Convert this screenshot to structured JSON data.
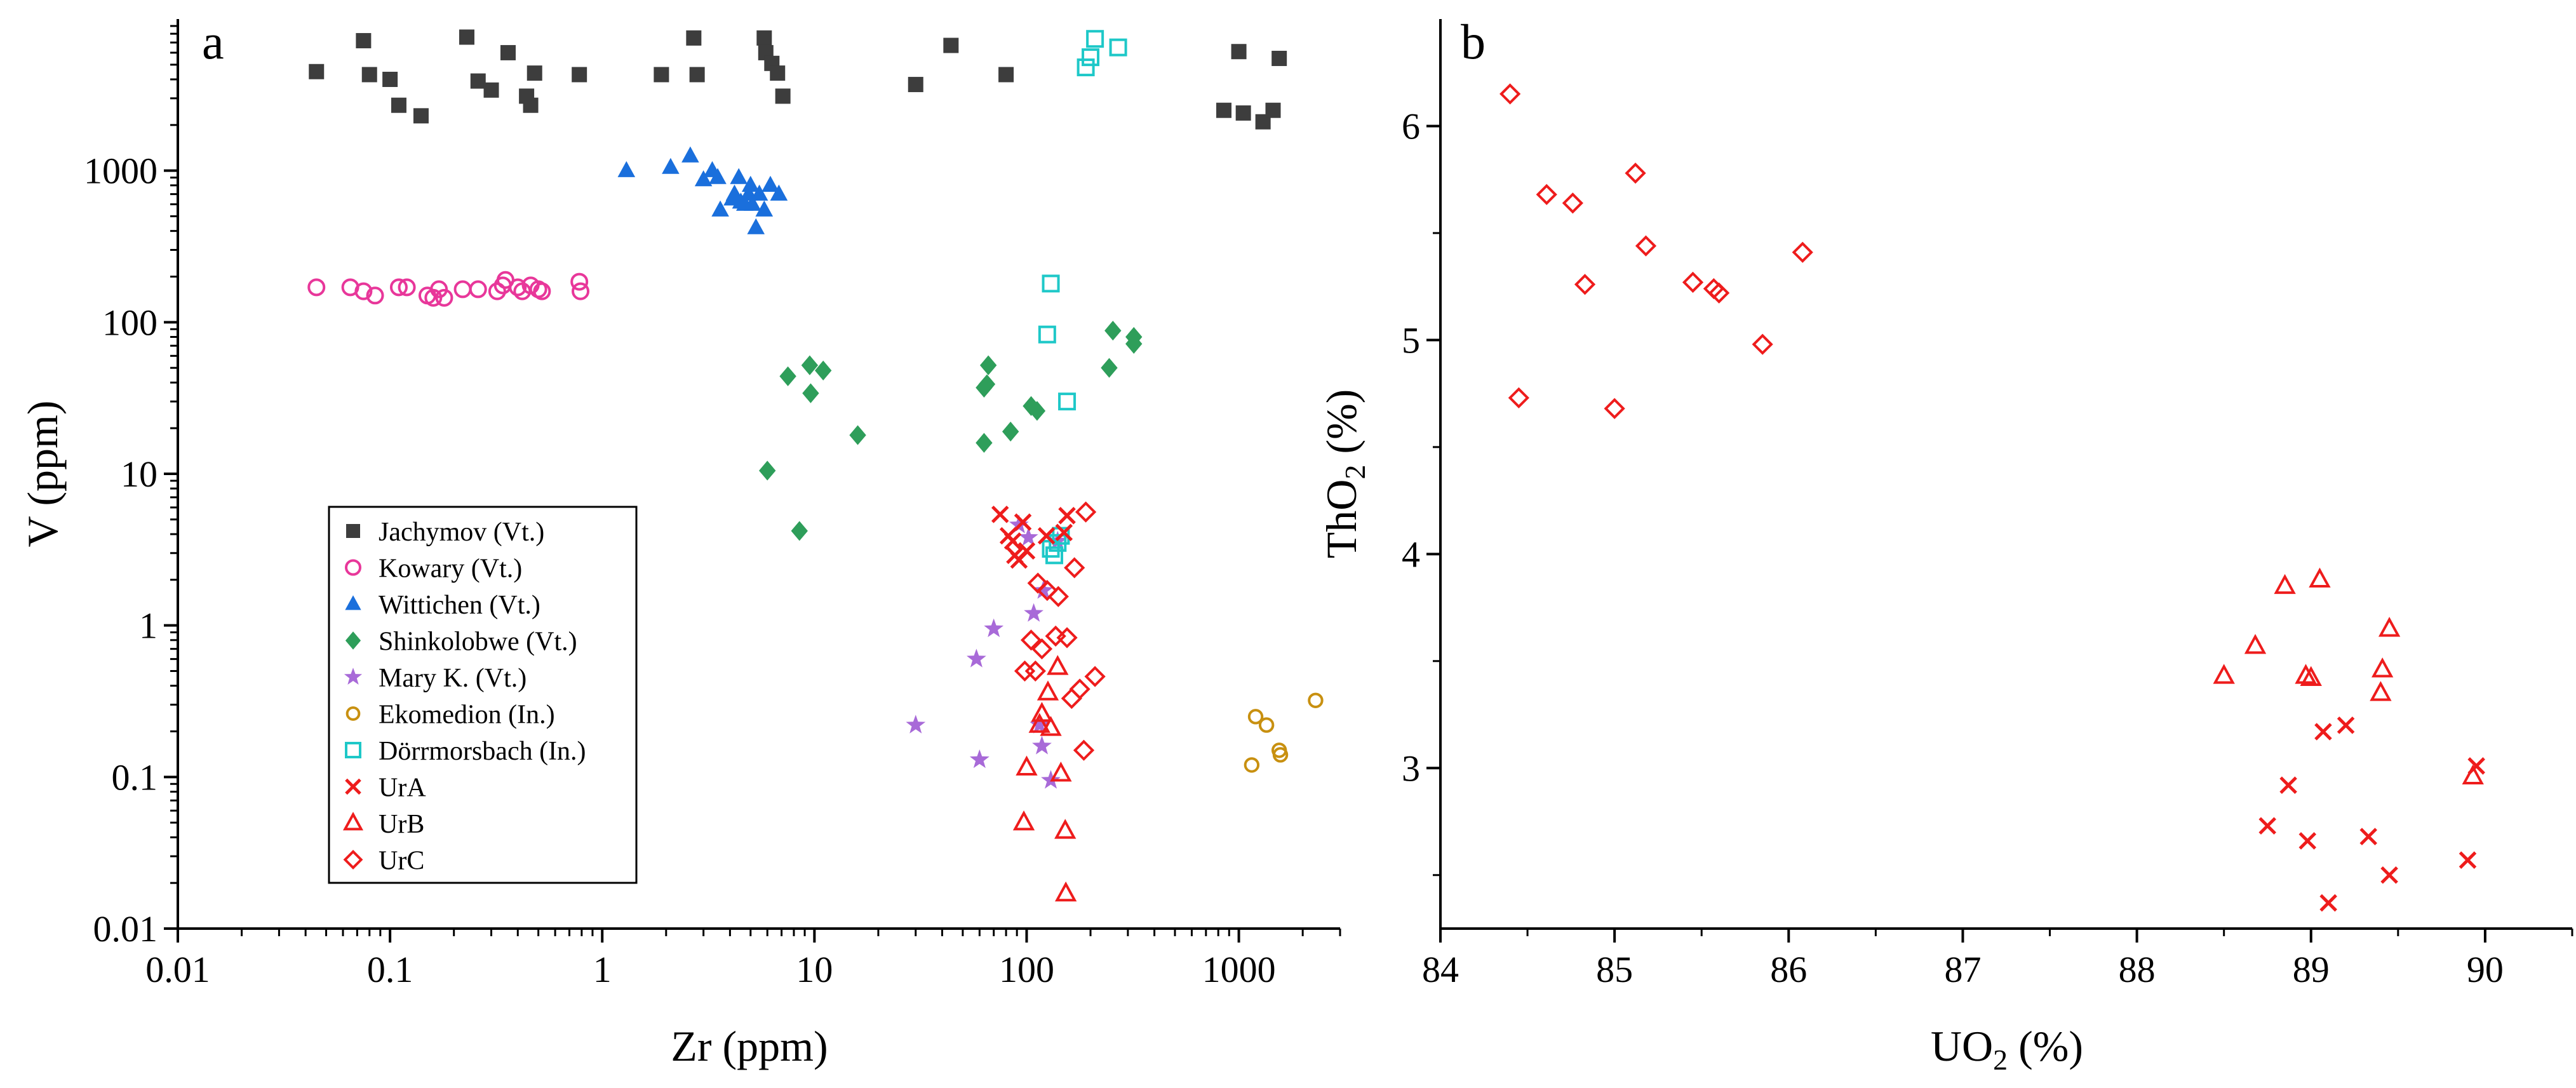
{
  "colors": {
    "Jachymov (Vt.)": "#3d3d3d",
    "Kowary (Vt.)": "#e8379a",
    "Wittichen (Vt.)": "#1a6fdc",
    "Shinkolobwe (Vt.)": "#2e9e5a",
    "Mary K. (Vt.)": "#a86ad8",
    "Ekomedion (In.)": "#c89010",
    "Dörrmorsbach (In.)": "#1ec8c8",
    "UrA": "#ee1c1c",
    "UrB": "#ee1c1c",
    "UrC": "#ee1c1c"
  },
  "chart_data": [
    {
      "type": "scatter",
      "panel": "a",
      "xscale": "log",
      "yscale": "log",
      "xlabel": "Zr (ppm)",
      "ylabel": "V (ppm)",
      "xlim": [
        0.01,
        3000
      ],
      "ylim": [
        0.01,
        10000
      ],
      "xticks": [
        {
          "v": 0.01,
          "label": "0.01"
        },
        {
          "v": 0.1,
          "label": "0.1"
        },
        {
          "v": 1,
          "label": "1"
        },
        {
          "v": 10,
          "label": "10"
        },
        {
          "v": 100,
          "label": "100"
        },
        {
          "v": 1000,
          "label": "1000"
        }
      ],
      "yticks": [
        {
          "v": 0.01,
          "label": "0.01"
        },
        {
          "v": 0.1,
          "label": "0.1"
        },
        {
          "v": 1,
          "label": "1"
        },
        {
          "v": 10,
          "label": "10"
        },
        {
          "v": 100,
          "label": "100"
        },
        {
          "v": 1000,
          "label": "1000"
        }
      ],
      "legend_position": "bottom-left",
      "series": [
        {
          "name": "Jachymov (Vt.)",
          "marker": "square",
          "points": [
            [
              0.045,
              4500
            ],
            [
              0.075,
              7200
            ],
            [
              0.08,
              4300
            ],
            [
              0.1,
              4000
            ],
            [
              0.11,
              2700
            ],
            [
              0.14,
              2300
            ],
            [
              0.23,
              7600
            ],
            [
              0.26,
              3900
            ],
            [
              0.3,
              3400
            ],
            [
              0.36,
              6000
            ],
            [
              0.44,
              3100
            ],
            [
              0.46,
              2700
            ],
            [
              0.48,
              4400
            ],
            [
              0.78,
              4300
            ],
            [
              1.9,
              4300
            ],
            [
              2.7,
              7500
            ],
            [
              2.8,
              4300
            ],
            [
              5.8,
              7500
            ],
            [
              5.9,
              6000
            ],
            [
              6.3,
              5100
            ],
            [
              6.7,
              4400
            ],
            [
              7.1,
              3100
            ],
            [
              30,
              3700
            ],
            [
              44,
              6700
            ],
            [
              80,
              4300
            ],
            [
              850,
              2500
            ],
            [
              1000,
              6100
            ],
            [
              1050,
              2400
            ],
            [
              1300,
              2100
            ],
            [
              1450,
              2500
            ],
            [
              1550,
              5500
            ]
          ]
        },
        {
          "name": "Kowary (Vt.)",
          "marker": "circle",
          "points": [
            [
              0.045,
              170
            ],
            [
              0.065,
              170
            ],
            [
              0.075,
              160
            ],
            [
              0.085,
              150
            ],
            [
              0.11,
              170
            ],
            [
              0.12,
              170
            ],
            [
              0.15,
              150
            ],
            [
              0.16,
              145
            ],
            [
              0.17,
              165
            ],
            [
              0.18,
              145
            ],
            [
              0.22,
              165
            ],
            [
              0.26,
              165
            ],
            [
              0.32,
              160
            ],
            [
              0.34,
              175
            ],
            [
              0.35,
              190
            ],
            [
              0.4,
              170
            ],
            [
              0.42,
              160
            ],
            [
              0.46,
              175
            ],
            [
              0.5,
              165
            ],
            [
              0.52,
              160
            ],
            [
              0.78,
              185
            ],
            [
              0.79,
              160
            ]
          ]
        },
        {
          "name": "Wittichen (Vt.)",
          "marker": "triangle",
          "points": [
            [
              1.3,
              1000
            ],
            [
              2.1,
              1050
            ],
            [
              2.6,
              1250
            ],
            [
              3.0,
              870
            ],
            [
              3.3,
              1000
            ],
            [
              3.5,
              900
            ],
            [
              3.6,
              550
            ],
            [
              4.1,
              650
            ],
            [
              4.2,
              700
            ],
            [
              4.4,
              900
            ],
            [
              4.5,
              620
            ],
            [
              4.7,
              600
            ],
            [
              4.9,
              700
            ],
            [
              5.0,
              800
            ],
            [
              5.1,
              600
            ],
            [
              5.3,
              420
            ],
            [
              5.5,
              700
            ],
            [
              5.8,
              550
            ],
            [
              6.2,
              800
            ],
            [
              6.8,
              700
            ]
          ]
        },
        {
          "name": "Shinkolobwe (Vt.)",
          "marker": "diamond",
          "points": [
            [
              6.0,
              10.5
            ],
            [
              7.5,
              44
            ],
            [
              8.5,
              4.2
            ],
            [
              9.5,
              52
            ],
            [
              9.6,
              34
            ],
            [
              11,
              48
            ],
            [
              16,
              18
            ],
            [
              63,
              16
            ],
            [
              63,
              37
            ],
            [
              65,
              39
            ],
            [
              66,
              52
            ],
            [
              105,
              28
            ],
            [
              112,
              26
            ],
            [
              84,
              19
            ],
            [
              245,
              50
            ],
            [
              255,
              88
            ],
            [
              320,
              72
            ],
            [
              320,
              80
            ]
          ]
        },
        {
          "name": "Mary K. (Vt.)",
          "marker": "star",
          "points": [
            [
              30,
              0.22
            ],
            [
              58,
              0.6
            ],
            [
              60,
              0.13
            ],
            [
              70,
              0.95
            ],
            [
              92,
              4.6
            ],
            [
              102,
              3.8
            ],
            [
              108,
              1.2
            ],
            [
              115,
              0.22
            ],
            [
              118,
              0.16
            ],
            [
              120,
              1.7
            ],
            [
              130,
              0.095
            ],
            [
              140,
              3.6
            ]
          ]
        },
        {
          "name": "Ekomedion (In.)",
          "marker": "circle-small",
          "points": [
            [
              1150,
              0.12
            ],
            [
              1200,
              0.25
            ],
            [
              1350,
              0.22
            ],
            [
              1550,
              0.15
            ],
            [
              1570,
              0.14
            ],
            [
              2300,
              0.32
            ]
          ]
        },
        {
          "name": "Dörrmorsbach (In.)",
          "marker": "square-open",
          "points": [
            [
              125,
              83
            ],
            [
              130,
              180
            ],
            [
              130,
              3.2
            ],
            [
              135,
              2.9
            ],
            [
              140,
              3.5
            ],
            [
              145,
              3.9
            ],
            [
              155,
              30
            ],
            [
              190,
              4800
            ],
            [
              200,
              5600
            ],
            [
              210,
              7400
            ],
            [
              270,
              6500
            ]
          ]
        },
        {
          "name": "UrA",
          "marker": "cross",
          "points": [
            [
              75,
              5.4
            ],
            [
              82,
              3.9
            ],
            [
              86,
              3.6
            ],
            [
              88,
              2.9
            ],
            [
              92,
              2.7
            ],
            [
              96,
              4.8
            ],
            [
              100,
              3.1
            ],
            [
              124,
              3.9
            ],
            [
              150,
              4.1
            ],
            [
              155,
              5.3
            ]
          ]
        },
        {
          "name": "UrB",
          "marker": "triangle-open",
          "points": [
            [
              97,
              0.05
            ],
            [
              100,
              0.115
            ],
            [
              115,
              0.22
            ],
            [
              118,
              0.26
            ],
            [
              126,
              0.36
            ],
            [
              130,
              0.21
            ],
            [
              140,
              0.53
            ],
            [
              145,
              0.105
            ],
            [
              152,
              0.044
            ],
            [
              153,
              0.017
            ]
          ]
        },
        {
          "name": "UrC",
          "marker": "diamond-open",
          "points": [
            [
              98,
              0.5
            ],
            [
              105,
              0.8
            ],
            [
              110,
              0.5
            ],
            [
              113,
              1.9
            ],
            [
              118,
              0.7
            ],
            [
              125,
              1.7
            ],
            [
              137,
              0.85
            ],
            [
              141,
              1.55
            ],
            [
              155,
              0.83
            ],
            [
              163,
              0.33
            ],
            [
              168,
              2.4
            ],
            [
              178,
              0.38
            ],
            [
              186,
              0.15
            ],
            [
              190,
              5.6
            ],
            [
              210,
              0.46
            ]
          ]
        }
      ]
    },
    {
      "type": "scatter",
      "panel": "b",
      "xscale": "linear",
      "yscale": "linear",
      "xlabel": "UO2 (%)",
      "ylabel": "ThO2 (%)",
      "xlim": [
        84,
        90.5
      ],
      "ylim": [
        2.25,
        6.5
      ],
      "xticks": [
        {
          "v": 84,
          "label": "84"
        },
        {
          "v": 85,
          "label": "85"
        },
        {
          "v": 86,
          "label": "86"
        },
        {
          "v": 87,
          "label": "87"
        },
        {
          "v": 88,
          "label": "88"
        },
        {
          "v": 89,
          "label": "89"
        },
        {
          "v": 90,
          "label": "90"
        }
      ],
      "yticks": [
        {
          "v": 3,
          "label": "3"
        },
        {
          "v": 4,
          "label": "4"
        },
        {
          "v": 5,
          "label": "5"
        },
        {
          "v": 6,
          "label": "6"
        }
      ],
      "series": [
        {
          "name": "UrA",
          "marker": "cross",
          "points": [
            [
              88.75,
              2.73
            ],
            [
              88.87,
              2.92
            ],
            [
              88.98,
              2.66
            ],
            [
              89.07,
              3.17
            ],
            [
              89.1,
              2.37
            ],
            [
              89.2,
              3.2
            ],
            [
              89.33,
              2.68
            ],
            [
              89.45,
              2.5
            ],
            [
              89.9,
              2.57
            ],
            [
              89.95,
              3.01
            ]
          ]
        },
        {
          "name": "UrB",
          "marker": "triangle-open",
          "points": [
            [
              88.5,
              3.43
            ],
            [
              88.68,
              3.57
            ],
            [
              88.85,
              3.85
            ],
            [
              88.97,
              3.43
            ],
            [
              89.0,
              3.42
            ],
            [
              89.05,
              3.88
            ],
            [
              89.4,
              3.35
            ],
            [
              89.41,
              3.46
            ],
            [
              89.45,
              3.65
            ],
            [
              89.93,
              2.96
            ]
          ]
        },
        {
          "name": "UrC",
          "marker": "diamond-open",
          "points": [
            [
              84.4,
              6.15
            ],
            [
              84.45,
              4.73
            ],
            [
              84.61,
              5.68
            ],
            [
              84.76,
              5.64
            ],
            [
              84.83,
              5.26
            ],
            [
              85.0,
              4.68
            ],
            [
              85.12,
              5.78
            ],
            [
              85.18,
              5.44
            ],
            [
              85.45,
              5.27
            ],
            [
              85.57,
              5.24
            ],
            [
              85.6,
              5.22
            ],
            [
              85.85,
              4.98
            ],
            [
              86.08,
              5.41
            ]
          ]
        }
      ]
    }
  ],
  "panel_a": {
    "letter": "a",
    "x_title": "Zr (ppm)",
    "y_title": "V (ppm)",
    "legend": [
      {
        "label": "Jachymov (Vt.)",
        "marker": "square"
      },
      {
        "label": "Kowary (Vt.)",
        "marker": "circle"
      },
      {
        "label": "Wittichen (Vt.)",
        "marker": "triangle"
      },
      {
        "label": "Shinkolobwe (Vt.)",
        "marker": "diamond"
      },
      {
        "label": "Mary K. (Vt.)",
        "marker": "star"
      },
      {
        "label": "Ekomedion (In.)",
        "marker": "circle-small"
      },
      {
        "label": "Dörrmorsbach (In.)",
        "marker": "square-open"
      },
      {
        "label": "UrA",
        "marker": "cross"
      },
      {
        "label": "UrB",
        "marker": "triangle-open"
      },
      {
        "label": "UrC",
        "marker": "diamond-open"
      }
    ]
  },
  "panel_b": {
    "letter": "b",
    "x_title_main": "UO",
    "x_title_sub": "2",
    "x_title_tail": " (%)",
    "y_title_main": "ThO",
    "y_title_sub": "2",
    "y_title_tail": " (%)"
  }
}
